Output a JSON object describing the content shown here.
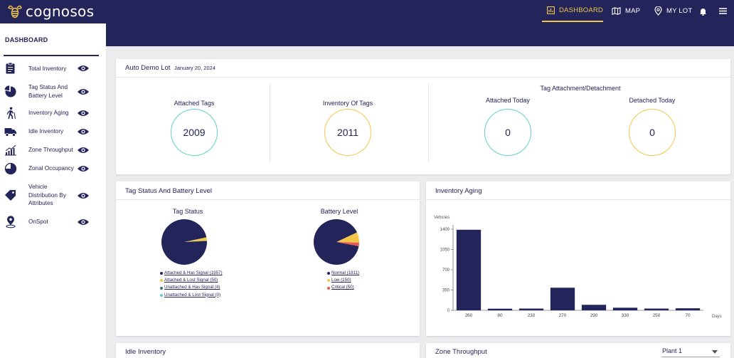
{
  "brand": {
    "name": "cognosos"
  },
  "nav": {
    "dashboard": "DASHBOARD",
    "map": "MAP",
    "mylot": "MY LOT"
  },
  "sidebar": {
    "title": "DASHBOARD",
    "items": [
      {
        "label": "Total Inventory",
        "icon": "clipboard-icon"
      },
      {
        "label": "Tag Status And Battery Level",
        "icon": "pie-chart-icon"
      },
      {
        "label": "Inventory Aging",
        "icon": "walking-person-icon"
      },
      {
        "label": "Idle Inventory",
        "icon": "truck-icon"
      },
      {
        "label": "Zone Throughput",
        "icon": "bar-trend-icon"
      },
      {
        "label": "Zonal Occupancy",
        "icon": "pie-quarter-icon"
      },
      {
        "label": "Vehicle Distribution By Attributes",
        "icon": "tag-icon"
      },
      {
        "label": "OnSpot",
        "icon": "location-pin-icon"
      }
    ]
  },
  "summary": {
    "lot_name": "Auto Demo Lot",
    "date": "January 20, 2024",
    "attached_tags_label": "Attached Tags",
    "attached_tags_value": "2009",
    "inventory_tags_label": "Inventory Of Tags",
    "inventory_tags_value": "2011",
    "attach_detach_title": "Tag Attachment/Detachment",
    "attached_today_label": "Attached Today",
    "attached_today_value": "0",
    "detached_today_label": "Detached Today",
    "detached_today_value": "0"
  },
  "tag_status_card": {
    "title": "Tag Status And Battery Level",
    "tag_status_title": "Tag Status",
    "battery_title": "Battery Level",
    "tag_legend": [
      {
        "label": "Attached & Has Signal (1957)",
        "color": "#23245a"
      },
      {
        "label": "Attached & Lost Signal (50)",
        "color": "#f3c64a"
      },
      {
        "label": "Unattached & Has Signal (4)",
        "color": "#3a6f6b"
      },
      {
        "label": "Unattached & Lost Signal (0)",
        "color": "#5fd3c3"
      }
    ],
    "battery_legend": [
      {
        "label": "Normal (1811)",
        "color": "#23245a"
      },
      {
        "label": "Low (150)",
        "color": "#f3c64a"
      },
      {
        "label": "Critical (50)",
        "color": "#e85a4f"
      }
    ]
  },
  "aging_card": {
    "title": "Inventory Aging"
  },
  "idle_card": {
    "title": "Idle Inventory"
  },
  "zone_card": {
    "title": "Zone Throughput",
    "select_value": "Plant 1"
  },
  "chart_data": [
    {
      "type": "pie",
      "title": "Tag Status",
      "labels": [
        "Attached & Has Signal",
        "Attached & Lost Signal",
        "Unattached & Has Signal",
        "Unattached & Lost Signal"
      ],
      "values": [
        1957,
        50,
        4,
        0
      ],
      "colors": [
        "#23245a",
        "#f3c64a",
        "#3a6f6b",
        "#5fd3c3"
      ]
    },
    {
      "type": "pie",
      "title": "Battery Level",
      "labels": [
        "Normal",
        "Low",
        "Critical"
      ],
      "values": [
        1811,
        150,
        50
      ],
      "colors": [
        "#23245a",
        "#f3c64a",
        "#e85a4f"
      ]
    },
    {
      "type": "bar",
      "title": "Inventory Aging",
      "ylabel": "Vehicles",
      "xlabel": "Days",
      "categories": [
        "260",
        "80",
        "230",
        "270",
        "290",
        "330",
        "250",
        "70"
      ],
      "values": [
        1390,
        28,
        30,
        390,
        95,
        45,
        30,
        35
      ],
      "yticks": [
        "0",
        "350",
        "700",
        "1050",
        "1400"
      ],
      "ylim": [
        0,
        1400
      ],
      "color": "#23245a"
    }
  ]
}
